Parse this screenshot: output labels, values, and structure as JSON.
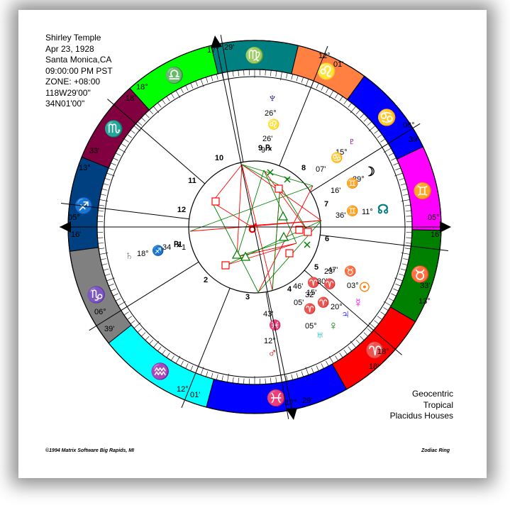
{
  "header": {
    "name": "Shirley Temple",
    "date": "Apr 23, 1928",
    "place": "Santa Monica,CA",
    "time": "09:00:00 PM PST",
    "zone": "ZONE: +08:00",
    "longitude": "118W29'00\"",
    "latitude": "34N01'00\""
  },
  "settings": {
    "perspective": "Geocentric",
    "zodiac": "Tropical",
    "houses": "Placidus Houses"
  },
  "footer": {
    "copyright": "©1994 Matrix Software  Big Rapids, MI",
    "chart_style": "Zodiac Ring"
  },
  "zodiac_ring": [
    {
      "sign": "Aries",
      "glyph": "♈",
      "color": "#ff0000"
    },
    {
      "sign": "Taurus",
      "glyph": "♉",
      "color": "#008000"
    },
    {
      "sign": "Gemini",
      "glyph": "♊",
      "color": "#ff00ff"
    },
    {
      "sign": "Cancer",
      "glyph": "♋",
      "color": "#0000ff"
    },
    {
      "sign": "Leo",
      "glyph": "♌",
      "color": "#ff8040"
    },
    {
      "sign": "Virgo",
      "glyph": "♍",
      "color": "#008080"
    },
    {
      "sign": "Libra",
      "glyph": "♎",
      "color": "#00ff00"
    },
    {
      "sign": "Scorpio",
      "glyph": "♏",
      "color": "#800040"
    },
    {
      "sign": "Sagittarius",
      "glyph": "♐",
      "color": "#004080"
    },
    {
      "sign": "Capricorn",
      "glyph": "♑",
      "color": "#808080"
    },
    {
      "sign": "Aquarius",
      "glyph": "♒",
      "color": "#00ffff"
    },
    {
      "sign": "Pisces",
      "glyph": "♓",
      "color": "#0000ff"
    }
  ],
  "house_numbers": [
    "1",
    "2",
    "3",
    "4",
    "5",
    "6",
    "7",
    "8",
    "9",
    "10",
    "11",
    "12"
  ],
  "cusp_labels": [
    {
      "deg": "05°",
      "min": "16'"
    },
    {
      "deg": "06°",
      "min": "39'"
    },
    {
      "deg": "12°",
      "min": "01'"
    },
    {
      "deg": "17°",
      "min": "29'"
    },
    {
      "deg": "18'",
      "min": "18°"
    },
    {
      "deg": "13°",
      "min": "33'"
    },
    {
      "deg": "05°",
      "min": "16'"
    },
    {
      "deg": "06°",
      "min": "39'"
    },
    {
      "deg": "12°",
      "min": "01'"
    },
    {
      "deg": "17°",
      "min": "29'"
    },
    {
      "deg": "18'",
      "min": "18°"
    },
    {
      "deg": "13°",
      "min": "33'"
    }
  ],
  "planets": [
    {
      "name": "Neptune",
      "glyph": "♆",
      "color": "#000080",
      "degree": "26°",
      "sign_glyph": "♌",
      "sign_color": "#ff8040",
      "minute": "26'",
      "retro": "℞",
      "extra": "9"
    },
    {
      "name": "Pluto",
      "glyph": "♇",
      "color": "#800080",
      "degree": "15°",
      "sign_glyph": "♋",
      "sign_color": "#0000ff",
      "minute": "07'"
    },
    {
      "name": "Moon",
      "glyph": "☽",
      "color": "#000000",
      "degree": "29°",
      "sign_glyph": "♊",
      "sign_color": "#ff00ff",
      "minute": "16'"
    },
    {
      "name": "Node",
      "glyph": "☊",
      "color": "#008080",
      "degree": "11°",
      "sign_glyph": "♊",
      "sign_color": "#ff00ff",
      "minute": "36'"
    },
    {
      "name": "Saturn",
      "glyph": "♄",
      "color": "#808080",
      "degree": "18°",
      "sign_glyph": "♐",
      "sign_color": "#004080",
      "minute": "34",
      "retro": "℞",
      "extra": "1"
    },
    {
      "name": "Sun",
      "glyph": "☉",
      "color": "#ff8000",
      "degree": "03°",
      "sign_glyph": "♉",
      "sign_color": "#008000",
      "minute": "23'"
    },
    {
      "name": "Mercury",
      "glyph": "☿",
      "color": "#ff00ff",
      "degree": "20°",
      "sign_glyph": "♈",
      "sign_color": "#ff0000",
      "minute": "15'"
    },
    {
      "name": "Jupiter",
      "glyph": "♃",
      "color": "#0000ff",
      "degree": "32'",
      "sign_glyph": "♈",
      "sign_color": "#ff0000",
      "minute": "05'"
    },
    {
      "name": "Venus",
      "glyph": "♀",
      "color": "#008000",
      "degree": "30'",
      "sign_glyph": "♈",
      "sign_color": "#ff0000",
      "minute": "47'"
    },
    {
      "name": "Uranus",
      "glyph": "♅",
      "color": "#00c0c0",
      "degree": "05°",
      "sign_glyph": "♈",
      "sign_color": "#ff0000",
      "minute": "46'"
    },
    {
      "name": "Mars",
      "glyph": "♂",
      "color": "#c00000",
      "degree": "12°",
      "sign_glyph": "♓",
      "sign_color": "#0000ff",
      "minute": "43'"
    }
  ],
  "aspects": {
    "squares_color": "#ff0000",
    "trines_color": "#008000",
    "square_glyph": "□",
    "trine_glyph": "△",
    "sextile_glyph": "✕",
    "conjunction_glyph": "☌"
  }
}
